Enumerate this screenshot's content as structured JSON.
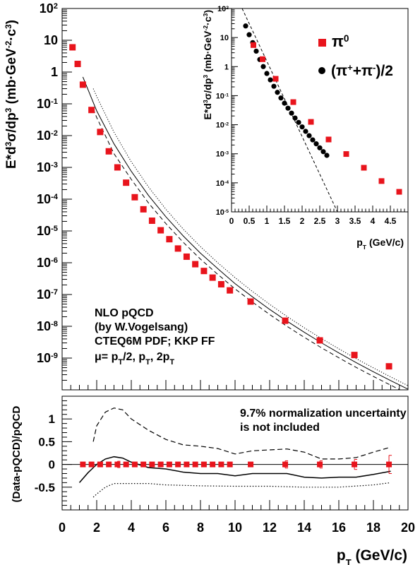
{
  "chart_data": [
    {
      "type": "scatter",
      "panel": "main",
      "ylabel": "E*d³σ/dp³ (mb·GeV⁻²·c³)",
      "xlim": [
        0,
        20
      ],
      "ylim": [
        1e-10,
        100
      ],
      "yscale": "log",
      "y_tick_labels": [
        "10⁻⁹",
        "10⁻⁸",
        "10⁻⁷",
        "10⁻⁶",
        "10⁻⁵",
        "10⁻⁴",
        "10⁻³",
        "10⁻²",
        "10⁻¹",
        "1",
        "10",
        "10²"
      ],
      "annotation_lines": [
        "NLO pQCD",
        "(by W.Vogelsang)",
        "CTEQ6M PDF; KKP FF",
        "μ= pT/2, pT, 2pT"
      ],
      "series": [
        {
          "style": "red-squares",
          "color": "#e8141c",
          "x": [
            0.6,
            0.9,
            1.2,
            1.7,
            2.2,
            2.7,
            3.2,
            3.7,
            4.2,
            4.7,
            5.2,
            5.7,
            6.2,
            6.7,
            7.2,
            7.7,
            8.2,
            8.7,
            9.2,
            9.7,
            10.9,
            12.9,
            14.9,
            16.9,
            18.9
          ],
          "y": [
            6.0,
            1.8,
            0.4,
            0.064,
            0.013,
            0.0032,
            0.001,
            0.00033,
            0.000115,
            4.8e-05,
            2.1e-05,
            1.05e-05,
            5.5e-06,
            2.8e-06,
            1.55e-06,
            9e-07,
            5.5e-07,
            3.4e-07,
            2.1e-07,
            1.35e-07,
            6e-08,
            1.5e-08,
            3.6e-09,
            1.25e-09,
            5.5e-10
          ]
        },
        {
          "style": "solid",
          "x": [
            1.2,
            2,
            3,
            4,
            5,
            6,
            7,
            8,
            9,
            10,
            11,
            12,
            13,
            14,
            15,
            16,
            17,
            18,
            19,
            20
          ],
          "y": [
            0.7,
            0.06,
            0.0055,
            0.00075,
            0.00013,
            2.8e-05,
            7e-06,
            2e-06,
            6.5e-07,
            2.2e-07,
            8.5e-08,
            3.4e-08,
            1.45e-08,
            6.5e-09,
            3e-09,
            1.45e-09,
            7.2e-10,
            3.7e-10,
            1.95e-10,
            1.05e-10
          ]
        },
        {
          "style": "dotted",
          "x": [
            1.8,
            2,
            3,
            4,
            5,
            6,
            7,
            8,
            9,
            10,
            11,
            12,
            13,
            14,
            15,
            16,
            17,
            18,
            19,
            20
          ],
          "y": [
            0.3,
            0.17,
            0.0128,
            0.0015,
            0.00024,
            4.8e-05,
            1.15e-05,
            3.2e-06,
            1e-06,
            3.4e-07,
            1.25e-07,
            4.9e-08,
            2.05e-08,
            9e-09,
            4.1e-09,
            1.95e-09,
            9.6e-10,
            4.9e-10,
            2.55e-10,
            1.35e-10
          ]
        },
        {
          "style": "dashed",
          "x": [
            1.8,
            2,
            3,
            4,
            5,
            6,
            7,
            8,
            9,
            10,
            11,
            12,
            13,
            14,
            15,
            16,
            17,
            18,
            19,
            20
          ],
          "y": [
            0.07,
            0.037,
            0.0027,
            0.00042,
            7.5e-05,
            1.7e-05,
            4.4e-06,
            1.3e-06,
            4.3e-07,
            1.5e-07,
            5.8e-08,
            2.35e-08,
            1e-08,
            4.5e-09,
            2.1e-09,
            1.02e-09,
            5.1e-10,
            2.65e-10,
            1.4e-10,
            7.5e-11
          ]
        }
      ]
    },
    {
      "type": "scatter",
      "panel": "inset",
      "xlabel": "pT (GeV/c)",
      "ylabel": "E*d³σ/dp³ (mb·GeV⁻²·c³)",
      "xlim": [
        0,
        5
      ],
      "ylim": [
        1e-05,
        100
      ],
      "yscale": "log",
      "x_tick_labels": [
        "0",
        "0.5",
        "1",
        "1.5",
        "2",
        "2.5",
        "3",
        "3.5",
        "4",
        "4.5"
      ],
      "y_tick_labels": [
        "10⁻⁵",
        "10⁻⁴",
        "10⁻³",
        "10⁻²",
        "10⁻¹",
        "1",
        "10",
        "10²"
      ],
      "legend": [
        {
          "label": "π⁰",
          "marker": "square",
          "color": "#e8141c"
        },
        {
          "label": "(π⁺+π⁻)/2",
          "marker": "circle",
          "color": "#000000"
        }
      ],
      "legend_position": "top-right",
      "series": [
        {
          "style": "red-squares",
          "color": "#e8141c",
          "x": [
            0.62,
            0.88,
            1.25,
            1.75,
            2.25,
            2.75,
            3.25,
            3.75,
            4.25,
            4.75
          ],
          "y": [
            5.5,
            1.8,
            0.38,
            0.06,
            0.0125,
            0.0031,
            0.00098,
            0.00033,
            0.000115,
            4.9e-05
          ]
        },
        {
          "style": "black-circles",
          "color": "#000000",
          "x": [
            0.4,
            0.5,
            0.6,
            0.7,
            0.8,
            0.9,
            1.0,
            1.1,
            1.2,
            1.3,
            1.4,
            1.5,
            1.6,
            1.7,
            1.8,
            1.9,
            2.0,
            2.1,
            2.2,
            2.3,
            2.4,
            2.5,
            2.6,
            2.7
          ],
          "y": [
            25,
            12.5,
            6.7,
            3.4,
            1.75,
            1.0,
            0.58,
            0.35,
            0.21,
            0.13,
            0.083,
            0.055,
            0.037,
            0.025,
            0.017,
            0.012,
            0.0084,
            0.0059,
            0.0042,
            0.003,
            0.0022,
            0.0016,
            0.00118,
            0.00088
          ]
        },
        {
          "style": "dashed",
          "x": [
            0.3,
            3.0
          ],
          "y": [
            100,
            1e-05
          ]
        }
      ]
    },
    {
      "type": "scatter",
      "panel": "ratio",
      "xlabel": "pT (GeV/c)",
      "ylabel": "(Data-pQCD)/pQCD",
      "xlim": [
        0,
        20
      ],
      "ylim": [
        -1.0,
        1.5
      ],
      "x_tick_labels": [
        "0",
        "2",
        "4",
        "6",
        "8",
        "10",
        "12",
        "14",
        "16",
        "18",
        "20"
      ],
      "y_tick_labels": [
        "-0.5",
        "0",
        "0.5",
        "1"
      ],
      "annotation_lines": [
        "9.7% normalization uncertainty",
        "is not included"
      ],
      "series": [
        {
          "style": "red-squares",
          "color": "#e8141c",
          "x": [
            1.2,
            1.7,
            2.2,
            2.7,
            3.2,
            3.7,
            4.2,
            4.7,
            5.2,
            5.7,
            6.2,
            6.7,
            7.2,
            7.7,
            8.2,
            8.7,
            9.2,
            9.7,
            10.9,
            12.9,
            14.9,
            16.9,
            18.9
          ],
          "y": [
            0,
            0,
            0,
            0,
            0,
            0,
            0,
            0,
            0,
            0,
            0,
            0,
            0,
            0,
            0,
            0,
            0,
            0,
            0,
            0,
            0,
            0,
            0
          ],
          "err": [
            0.02,
            0.02,
            0.02,
            0.03,
            0.07,
            0.02,
            0.02,
            0.02,
            0.02,
            0.02,
            0.02,
            0.02,
            0.02,
            0.02,
            0.02,
            0.02,
            0.02,
            0.02,
            0.04,
            0.08,
            0.08,
            0.11,
            0.2
          ]
        },
        {
          "style": "solid",
          "x": [
            1.0,
            1.5,
            2.0,
            2.5,
            3.0,
            3.5,
            4.0,
            5.0,
            6.0,
            7.0,
            8.0,
            9.0,
            10.0,
            11.0,
            12.0,
            13.0,
            14.0,
            15.0,
            16.0,
            17.0,
            18.0,
            19.0
          ],
          "y": [
            -0.4,
            -0.18,
            0.0,
            0.12,
            0.17,
            0.14,
            0.05,
            -0.07,
            -0.1,
            -0.17,
            -0.2,
            -0.2,
            -0.25,
            -0.2,
            -0.2,
            -0.2,
            -0.28,
            -0.3,
            -0.28,
            -0.28,
            -0.22,
            -0.15
          ]
        },
        {
          "style": "dashed",
          "x": [
            1.8,
            2.0,
            2.5,
            3.0,
            3.5,
            4.0,
            5.0,
            6.0,
            7.0,
            8.0,
            9.0,
            10.0,
            11.0,
            12.0,
            13.0,
            14.0,
            15.0,
            16.0,
            17.0,
            18.0,
            19.0
          ],
          "y": [
            0.5,
            0.85,
            1.15,
            1.24,
            1.2,
            1.0,
            0.75,
            0.55,
            0.43,
            0.4,
            0.35,
            0.23,
            0.3,
            0.32,
            0.34,
            0.27,
            0.12,
            0.12,
            0.15,
            0.27,
            0.38
          ]
        },
        {
          "style": "dotted",
          "x": [
            1.8,
            2.0,
            2.5,
            3.0,
            4.0,
            5.0,
            6.0,
            8.0,
            10.0,
            12.0,
            14.0,
            16.0,
            18.0,
            19.0
          ],
          "y": [
            -0.72,
            -0.65,
            -0.5,
            -0.42,
            -0.42,
            -0.42,
            -0.45,
            -0.47,
            -0.48,
            -0.48,
            -0.5,
            -0.5,
            -0.45,
            -0.4
          ]
        }
      ]
    }
  ],
  "x_axis_title": "pT (GeV/c)"
}
